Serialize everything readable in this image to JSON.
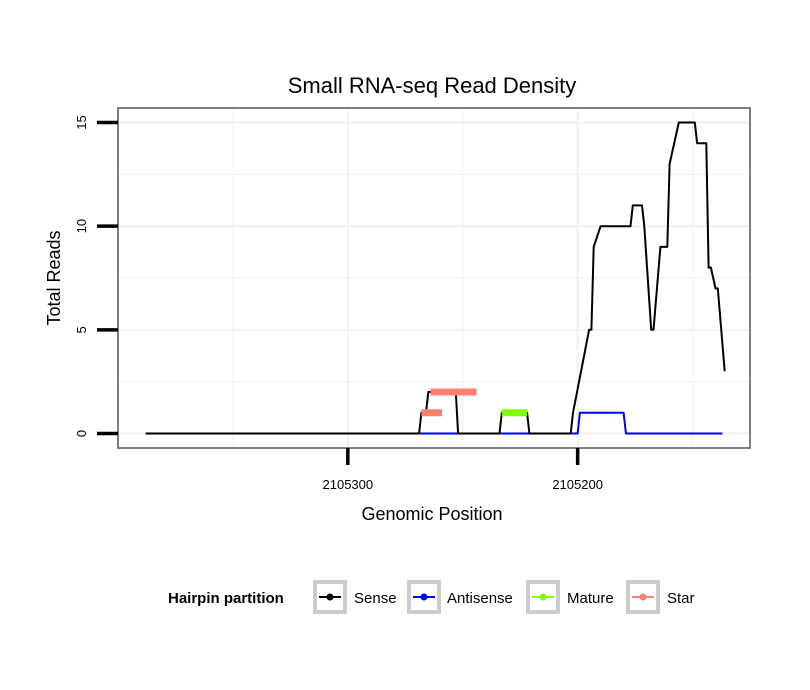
{
  "chart_data": {
    "type": "line",
    "title": "Small RNA-seq Read Density",
    "xlabel": "Genomic Position",
    "ylabel": "Total Reads",
    "xlim": [
      2105400,
      2105125
    ],
    "ylim": [
      -0.7,
      15.7
    ],
    "x_reversed": true,
    "xticks": [
      2105300,
      2105200
    ],
    "xtick_labels": [
      "2105300",
      "2105200"
    ],
    "yticks": [
      0,
      5,
      10,
      15
    ],
    "ytick_labels": [
      "0",
      "5",
      "10",
      "15"
    ],
    "legend": {
      "title": "Hairpin partition",
      "placement": "bottom",
      "entries": [
        "Sense",
        "Antisense",
        "Mature",
        "Star"
      ]
    },
    "colors": {
      "sense": "#000000",
      "antisense": "#0000ff",
      "mature": "#7fff00",
      "star": "#fa8072",
      "panel_border": "#7f7f7f",
      "grid": "#f2f2f2"
    },
    "series": [
      {
        "name": "Sense",
        "color": "#000000",
        "x": [
          2105388,
          2105269,
          2105268,
          2105266,
          2105265,
          2105261,
          2105254,
          2105253,
          2105252,
          2105234,
          2105233,
          2105222,
          2105221,
          2105208,
          2105203,
          2105202,
          2105195,
          2105194,
          2105193,
          2105190,
          2105189,
          2105186,
          2105185,
          2105183,
          2105177,
          2105176,
          2105172,
          2105171,
          2105168,
          2105167,
          2105164,
          2105163,
          2105161,
          2105160,
          2105156,
          2105155,
          2105149,
          2105148,
          2105145,
          2105144,
          2105143,
          2105142,
          2105140,
          2105139,
          2105136
        ],
        "y": [
          0,
          0,
          1,
          1,
          2,
          2,
          2,
          2,
          0,
          0,
          1,
          1,
          0,
          0,
          0,
          1,
          5,
          5,
          9,
          10,
          10,
          10,
          10,
          10,
          10,
          11,
          11,
          10,
          5,
          5,
          9,
          9,
          9,
          13,
          15,
          15,
          15,
          14,
          14,
          14,
          8,
          8,
          7,
          7,
          3
        ]
      },
      {
        "name": "Antisense",
        "color": "#0000ff",
        "x": [
          2105269,
          2105200,
          2105199,
          2105180,
          2105179,
          2105137
        ],
        "y": [
          0,
          0,
          1,
          1,
          0,
          0
        ]
      },
      {
        "name": "Mature",
        "color": "#7fff00",
        "x": [
          2105233,
          2105222
        ],
        "y": [
          1,
          1
        ]
      },
      {
        "name": "Star",
        "color": "#fa8072",
        "segments": [
          {
            "x": [
              2105268,
              2105259
            ],
            "y": [
              1,
              1
            ]
          },
          {
            "x": [
              2105264,
              2105244
            ],
            "y": [
              2,
              2
            ]
          }
        ]
      }
    ]
  }
}
